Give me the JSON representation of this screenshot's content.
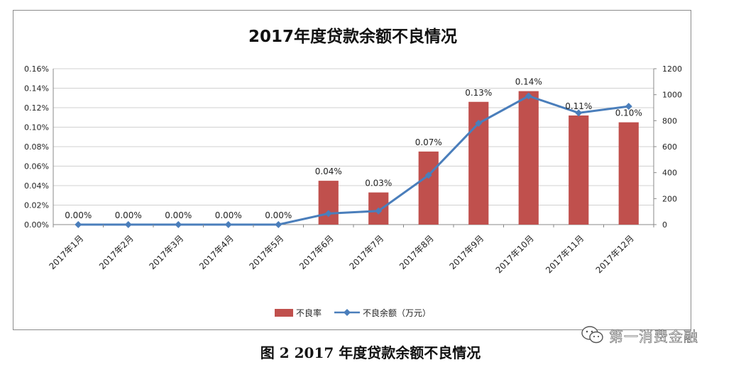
{
  "chart_data": {
    "type": "bar",
    "title": "2017年度贷款余额不良情况",
    "categories": [
      "2017年1月",
      "2017年2月",
      "2017年3月",
      "2017年4月",
      "2017年5月",
      "2017年6月",
      "2017年7月",
      "2017年8月",
      "2017年9月",
      "2017年10月",
      "2017年11月",
      "2017年12月"
    ],
    "series": [
      {
        "name": "不良率",
        "type": "bar",
        "axis": "left",
        "color": "#c0504d",
        "values": [
          0,
          0,
          0,
          0,
          0,
          0.045,
          0.033,
          0.075,
          0.126,
          0.137,
          0.112,
          0.105
        ],
        "labels": [
          "0.00%",
          "0.00%",
          "0.00%",
          "0.00%",
          "0.00%",
          "0.04%",
          "0.03%",
          "0.07%",
          "0.13%",
          "0.14%",
          "0.11%",
          "0.10%"
        ]
      },
      {
        "name": "不良余额（万元）",
        "type": "line",
        "axis": "right",
        "color": "#4a7ebb",
        "values": [
          0,
          0,
          0,
          0,
          0,
          85,
          105,
          380,
          780,
          990,
          860,
          910
        ]
      }
    ],
    "y_left": {
      "lim": [
        0,
        0.16
      ],
      "ticks": [
        "0.00%",
        "0.02%",
        "0.04%",
        "0.06%",
        "0.08%",
        "0.10%",
        "0.12%",
        "0.14%",
        "0.16%"
      ]
    },
    "y_right": {
      "lim": [
        0,
        1200
      ],
      "ticks": [
        "0",
        "200",
        "400",
        "600",
        "800",
        "1000",
        "1200"
      ]
    },
    "grid": "horizontal",
    "legend": "bottom"
  },
  "caption": "图 2 2017 年度贷款余额不良情况",
  "watermark": {
    "text": "第一消费金融",
    "icon": "wechat-icon"
  }
}
